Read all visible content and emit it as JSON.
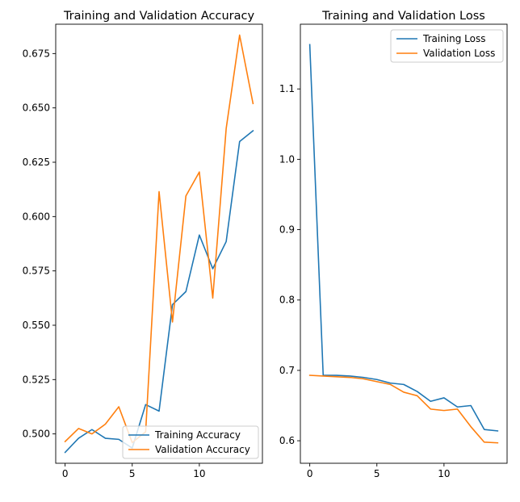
{
  "chart_data": [
    {
      "type": "line",
      "title": "Training and Validation Accuracy",
      "xlabel": "",
      "ylabel": "",
      "xlim": [
        -0.7,
        14.7
      ],
      "ylim": [
        0.4865,
        0.6885
      ],
      "xticks": [
        0,
        5,
        10
      ],
      "xtick_labels": [
        "0",
        "5",
        "10"
      ],
      "yticks": [
        0.5,
        0.525,
        0.55,
        0.575,
        0.6,
        0.625,
        0.65,
        0.675
      ],
      "ytick_labels": [
        "0.500",
        "0.525",
        "0.550",
        "0.575",
        "0.600",
        "0.625",
        "0.650",
        "0.675"
      ],
      "grid": false,
      "legend_position": "lower-right",
      "x": [
        0,
        1,
        2,
        3,
        4,
        5,
        6,
        7,
        8,
        9,
        10,
        11,
        12,
        13,
        14
      ],
      "series": [
        {
          "name": "Training Accuracy",
          "color": "#1f77b4",
          "values": [
            0.4915,
            0.498,
            0.502,
            0.498,
            0.4975,
            0.4935,
            0.5135,
            0.5105,
            0.5595,
            0.5655,
            0.5915,
            0.576,
            0.5885,
            0.6345,
            0.6395
          ]
        },
        {
          "name": "Validation Accuracy",
          "color": "#ff7f0e",
          "values": [
            0.4965,
            0.5025,
            0.5,
            0.5045,
            0.5125,
            0.496,
            0.501,
            0.6115,
            0.5515,
            0.6095,
            0.6205,
            0.5625,
            0.6405,
            0.6835,
            0.652
          ]
        }
      ]
    },
    {
      "type": "line",
      "title": "Training and Validation Loss",
      "xlabel": "",
      "ylabel": "",
      "xlim": [
        -0.7,
        14.7
      ],
      "ylim": [
        0.568,
        1.192
      ],
      "xticks": [
        0,
        5,
        10
      ],
      "xtick_labels": [
        "0",
        "5",
        "10"
      ],
      "yticks": [
        0.6,
        0.7,
        0.8,
        0.9,
        1.0,
        1.1
      ],
      "ytick_labels": [
        "0.6",
        "0.7",
        "0.8",
        "0.9",
        "1.0",
        "1.1"
      ],
      "grid": false,
      "legend_position": "top-right",
      "x": [
        0,
        1,
        2,
        3,
        4,
        5,
        6,
        7,
        8,
        9,
        10,
        11,
        12,
        13,
        14
      ],
      "series": [
        {
          "name": "Training Loss",
          "color": "#1f77b4",
          "values": [
            1.163,
            0.693,
            0.693,
            0.692,
            0.69,
            0.687,
            0.682,
            0.68,
            0.67,
            0.656,
            0.661,
            0.648,
            0.65,
            0.616,
            0.614
          ]
        },
        {
          "name": "Validation Loss",
          "color": "#ff7f0e",
          "values": [
            0.693,
            0.692,
            0.691,
            0.69,
            0.688,
            0.684,
            0.68,
            0.669,
            0.664,
            0.645,
            0.643,
            0.645,
            0.62,
            0.598,
            0.597
          ]
        }
      ]
    }
  ]
}
